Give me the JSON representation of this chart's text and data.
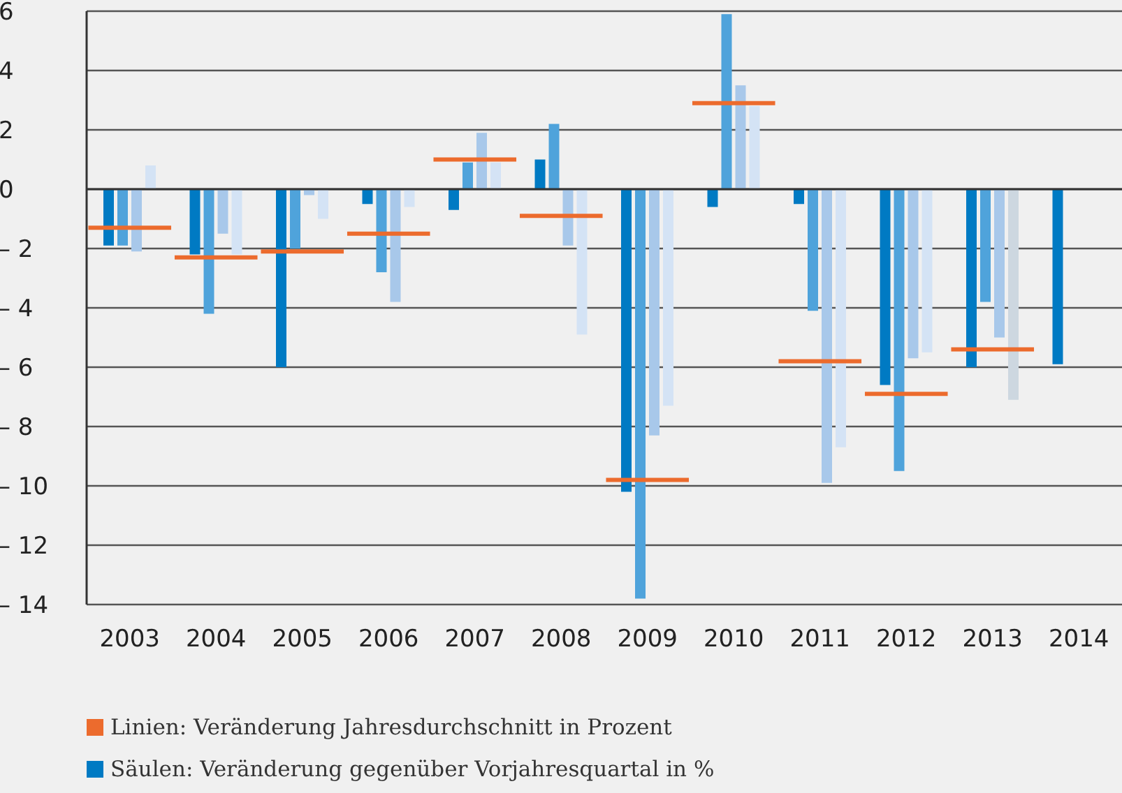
{
  "chart_data": {
    "type": "bar",
    "x": [
      2003,
      2004,
      2005,
      2006,
      2007,
      2008,
      2009,
      2010,
      2011,
      2012,
      2013,
      2014
    ],
    "series": [
      {
        "name": "Säulen: Veränderung gegenüber Vorjahresquartal in %",
        "color": "#007ac3",
        "values": [
          -1.9,
          -2.2,
          -6.0,
          -0.5,
          -0.7,
          1.0,
          -10.2,
          -0.6,
          -0.5,
          -6.6,
          -6.0,
          -5.9
        ]
      },
      {
        "color": "#4fa3db",
        "values": [
          -1.9,
          -4.2,
          -2.0,
          -2.8,
          0.9,
          2.2,
          -13.8,
          5.9,
          -4.1,
          -9.5,
          -3.8,
          null
        ]
      },
      {
        "color": "#a8c8ea",
        "values": [
          -2.1,
          -1.5,
          -0.2,
          -3.8,
          1.9,
          -1.9,
          -8.3,
          3.5,
          -9.9,
          -5.7,
          -5.0,
          null
        ]
      },
      {
        "color": "#d4e3f5",
        "colors": [
          "#d4e3f5",
          "#d4e3f5",
          "#d4e3f5",
          "#d4e3f5",
          "#d4e3f5",
          "#d4e3f5",
          "#d4e3f5",
          "#d4e3f5",
          "#d4e3f5",
          "#d4e3f5",
          "#cdd7e0",
          "#d4e3f5"
        ],
        "values": [
          0.8,
          -2.2,
          -1.0,
          -0.6,
          0.9,
          -4.9,
          -7.3,
          2.8,
          -8.7,
          -5.5,
          -7.1,
          null
        ]
      },
      {
        "type": "line",
        "marker": "none",
        "name": "Linien: Veränderung Jahresdurchschnitt in Prozent",
        "color": "#ec6b2d",
        "x": [
          2002.52,
          2003.48,
          2003.5,
          2003.52,
          2004.48,
          2004.5,
          2004.52,
          2005.48,
          2005.5,
          2005.52,
          2006.48,
          2006.5,
          2006.52,
          2007.48,
          2007.5,
          2007.52,
          2008.48,
          2008.5,
          2008.52,
          2009.48,
          2009.5,
          2009.52,
          2010.48,
          2010.5,
          2010.52,
          2011.48,
          2011.5,
          2011.52,
          2012.48,
          2012.5,
          2012.52,
          2013.48
        ],
        "values": [
          -1.3,
          -1.3,
          null,
          -2.3,
          -2.3,
          null,
          -2.1,
          -2.1,
          null,
          -1.5,
          -1.5,
          null,
          1.0,
          1.0,
          null,
          -0.9,
          -0.9,
          null,
          -9.8,
          -9.8,
          null,
          2.9,
          2.9,
          null,
          -5.8,
          -5.8,
          null,
          -6.9,
          -6.9,
          null,
          -5.4,
          -5.4
        ]
      }
    ],
    "xlim": [
      2002.5,
      2014.5
    ],
    "xticks": [
      2003,
      2004,
      2005,
      2006,
      2007,
      2008,
      2009,
      2010,
      2011,
      2012,
      2013,
      2014
    ],
    "ylim": [
      -14,
      6
    ],
    "yticks": [
      {
        "value": -14,
        "label": "– 14"
      },
      {
        "value": -12,
        "label": "– 12"
      },
      {
        "value": -10,
        "label": "– 10"
      },
      {
        "value": -8,
        "label": "– 8"
      },
      {
        "value": -6,
        "label": "– 6"
      },
      {
        "value": -4,
        "label": "– 4"
      },
      {
        "value": -2,
        "label": "– 2"
      },
      0,
      2,
      4,
      6
    ],
    "grid": "y",
    "legend": "bottom"
  }
}
